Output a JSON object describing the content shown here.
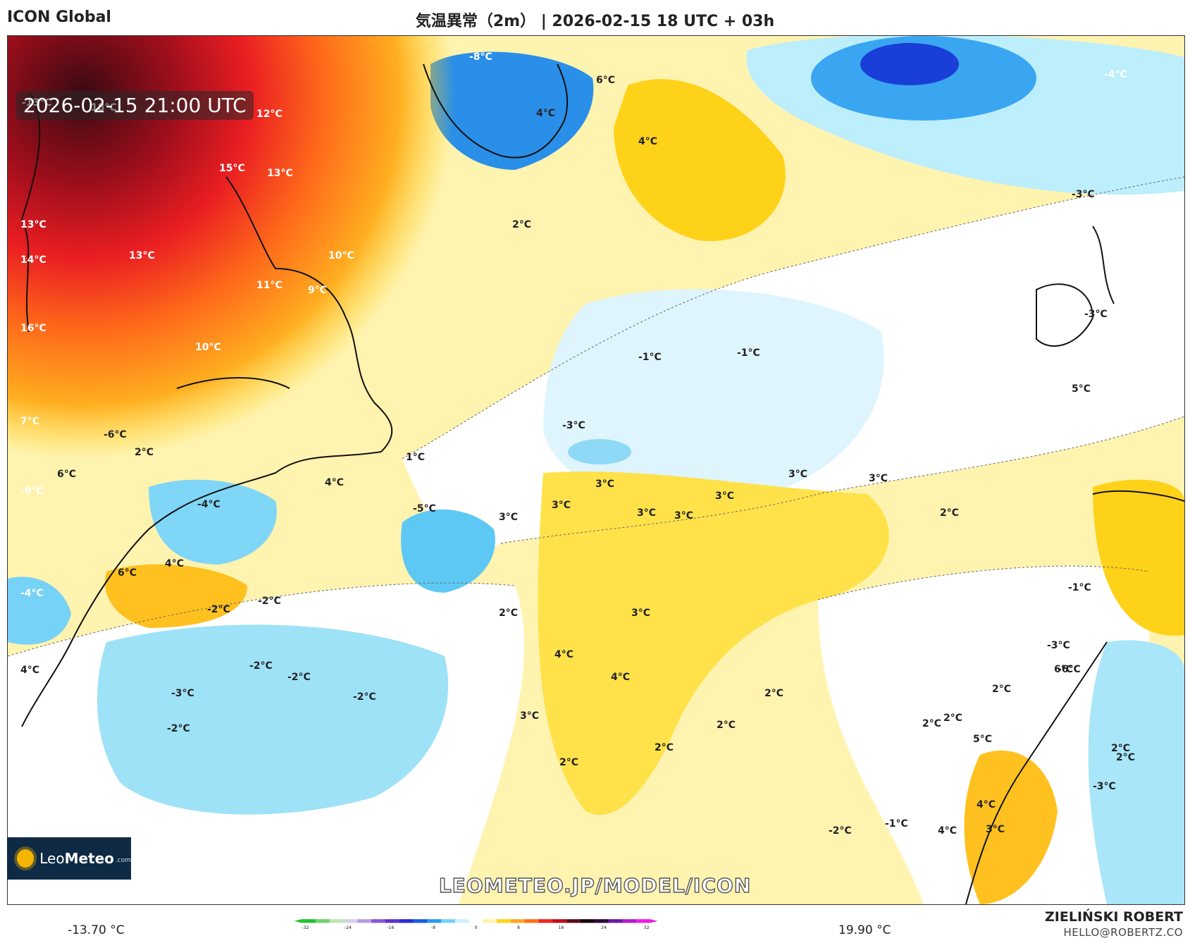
{
  "header": {
    "model": "ICON Global",
    "title": "気温異常（2m） | 2026-02-15 18 UTC + 03h"
  },
  "map": {
    "timestamp": "2026-02-15 21:00 UTC",
    "watermark": "LEOMETEO.JP/MODEL/ICON",
    "logo": {
      "name": "LeoMeteo",
      "part1": "Leo",
      "part2": "Meteo",
      "domain": ".com"
    },
    "labels": [
      {
        "t": "-8°C",
        "c": "w"
      },
      {
        "t": "6°C"
      },
      {
        "t": "-4°C",
        "c": "w"
      },
      {
        "t": "-13°C",
        "c": "w"
      },
      {
        "t": "18°C",
        "c": "w"
      },
      {
        "t": "12°C",
        "c": "w"
      },
      {
        "t": "4°C"
      },
      {
        "t": "4°C"
      },
      {
        "t": "15°C",
        "c": "w"
      },
      {
        "t": "13°C",
        "c": "w"
      },
      {
        "t": "-3°C"
      },
      {
        "t": "13°C",
        "c": "w"
      },
      {
        "t": "2°C"
      },
      {
        "t": "14°C",
        "c": "w"
      },
      {
        "t": "13°C",
        "c": "w"
      },
      {
        "t": "10°C",
        "c": "w"
      },
      {
        "t": "11°C",
        "c": "w"
      },
      {
        "t": "9°C",
        "c": "w"
      },
      {
        "t": "-3°C"
      },
      {
        "t": "16°C",
        "c": "w"
      },
      {
        "t": "10°C",
        "c": "w"
      },
      {
        "t": "-1°C"
      },
      {
        "t": "-1°C"
      },
      {
        "t": "5°C"
      },
      {
        "t": "7°C",
        "c": "w"
      },
      {
        "t": "-6°C"
      },
      {
        "t": "2°C"
      },
      {
        "t": "1°C"
      },
      {
        "t": "-3°C"
      },
      {
        "t": "6°C"
      },
      {
        "t": "-9°C",
        "c": "w"
      },
      {
        "t": "4°C"
      },
      {
        "t": "3°C"
      },
      {
        "t": "3°C"
      },
      {
        "t": "2°C"
      },
      {
        "t": "6°C"
      },
      {
        "t": "-4°C"
      },
      {
        "t": "-5°C"
      },
      {
        "t": "3°C"
      },
      {
        "t": "3°C"
      },
      {
        "t": "3°C"
      },
      {
        "t": "3°C"
      },
      {
        "t": "3°C"
      },
      {
        "t": "2°C"
      },
      {
        "t": "3°C"
      },
      {
        "t": "4°C"
      },
      {
        "t": "6°C"
      },
      {
        "t": "-2°C"
      },
      {
        "t": "-2°C"
      },
      {
        "t": "-4°C",
        "c": "w"
      },
      {
        "t": "-1°C"
      },
      {
        "t": "2°C"
      },
      {
        "t": "3°C"
      },
      {
        "t": "4°C"
      },
      {
        "t": "-3°C"
      },
      {
        "t": "-6°C"
      },
      {
        "t": "-2°C"
      },
      {
        "t": "-2°C"
      },
      {
        "t": "4°C"
      },
      {
        "t": "-3°C"
      },
      {
        "t": "-2°C"
      },
      {
        "t": "-2°C"
      },
      {
        "t": "4°C"
      },
      {
        "t": "2°C"
      },
      {
        "t": "2°C"
      },
      {
        "t": "3°C"
      },
      {
        "t": "2°C"
      },
      {
        "t": "2°C"
      },
      {
        "t": "2°C"
      },
      {
        "t": "2°C"
      },
      {
        "t": "2°C"
      },
      {
        "t": "5°C"
      },
      {
        "t": "2°C"
      },
      {
        "t": "-3°C"
      },
      {
        "t": "4°C"
      },
      {
        "t": "-2°C"
      },
      {
        "t": "-1°C"
      },
      {
        "t": "4°C"
      },
      {
        "t": "3°C"
      }
    ]
  },
  "colorbar": {
    "min_label": "-13.70 °C",
    "max_label": "19.90 °C",
    "ticks": [
      "-32",
      "-24",
      "-16",
      "-8",
      "0",
      "8",
      "16",
      "24",
      "32"
    ],
    "colors": [
      "#22c232",
      "#6fd36a",
      "#b9e7b3",
      "#d8d0e8",
      "#b79be0",
      "#8a57d6",
      "#5a2fd0",
      "#2a2ad8",
      "#1b5ae8",
      "#2a9af0",
      "#76d2f6",
      "#cdf0fb",
      "#ffffff",
      "#fff3a6",
      "#ffd21a",
      "#ffa41f",
      "#ff6d1a",
      "#f0241a",
      "#b8101c",
      "#5a0d15",
      "#14060a",
      "#2a0a3a",
      "#6b1aa0",
      "#b21ac8",
      "#f01ae8"
    ]
  },
  "footer": {
    "author": "ZIELIŃSKI ROBERT",
    "email": "HELLO@ROBERTZ.CO"
  }
}
